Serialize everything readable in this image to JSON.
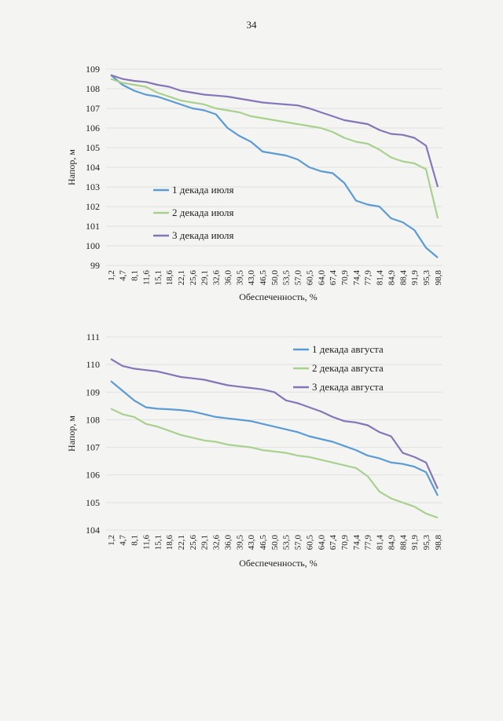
{
  "page_number": "34",
  "colors": {
    "blue": "#5b9bd5",
    "green": "#a9d18e",
    "purple": "#8676b8",
    "grid": "#e1e1e1"
  },
  "x_tick_labels": [
    "1,2",
    "4,7",
    "8,1",
    "11,6",
    "15,1",
    "18,6",
    "22,1",
    "25,6",
    "29,1",
    "32,6",
    "36,0",
    "39,5",
    "43,0",
    "46,5",
    "50,0",
    "53,5",
    "57,0",
    "60,5",
    "64,0",
    "67,4",
    "70,9",
    "74,4",
    "77,9",
    "81,4",
    "84,9",
    "88,4",
    "91,9",
    "95,3",
    "98,8"
  ],
  "chart_data": [
    {
      "type": "line",
      "title": "",
      "xlabel": "Обеспеченность, %",
      "ylabel": "Напор, м",
      "ylim": [
        99,
        109
      ],
      "yticks": [
        "99",
        "100",
        "101",
        "102",
        "103",
        "104",
        "105",
        "106",
        "107",
        "108",
        "109"
      ],
      "legend_position": "left-center",
      "x": [
        1.2,
        4.7,
        8.1,
        11.6,
        15.1,
        18.6,
        22.1,
        25.6,
        29.1,
        32.6,
        36.0,
        39.5,
        43.0,
        46.5,
        50.0,
        53.5,
        57.0,
        60.5,
        64.0,
        67.4,
        70.9,
        74.4,
        77.9,
        81.4,
        84.9,
        88.4,
        91.9,
        95.3,
        98.8
      ],
      "series": [
        {
          "name": "1 декада июля",
          "color": "#5b9bd5",
          "values": [
            108.7,
            108.2,
            107.9,
            107.7,
            107.6,
            107.4,
            107.2,
            107.0,
            106.9,
            106.7,
            106.0,
            105.6,
            105.3,
            104.8,
            104.7,
            104.6,
            104.4,
            104.0,
            103.8,
            103.7,
            103.2,
            102.3,
            102.1,
            102.0,
            101.4,
            101.2,
            100.8,
            99.9,
            99.4
          ]
        },
        {
          "name": "2 декада июля",
          "color": "#a9d18e",
          "values": [
            108.5,
            108.3,
            108.2,
            108.1,
            107.8,
            107.6,
            107.4,
            107.3,
            107.2,
            107.0,
            106.9,
            106.8,
            106.6,
            106.5,
            106.4,
            106.3,
            106.2,
            106.1,
            106.0,
            105.8,
            105.5,
            105.3,
            105.2,
            104.9,
            104.5,
            104.3,
            104.2,
            103.9,
            101.4
          ]
        },
        {
          "name": "3 декада июля",
          "color": "#8676b8",
          "values": [
            108.7,
            108.5,
            108.4,
            108.35,
            108.2,
            108.1,
            107.9,
            107.8,
            107.7,
            107.65,
            107.6,
            107.5,
            107.4,
            107.3,
            107.25,
            107.2,
            107.15,
            107.0,
            106.8,
            106.6,
            106.4,
            106.3,
            106.2,
            105.9,
            105.7,
            105.65,
            105.5,
            105.1,
            103.0
          ]
        }
      ]
    },
    {
      "type": "line",
      "title": "",
      "xlabel": "Обеспеченность, %",
      "ylabel": "Напор, м",
      "ylim": [
        104,
        111
      ],
      "yticks": [
        "104",
        "105",
        "106",
        "107",
        "108",
        "109",
        "110",
        "111"
      ],
      "legend_position": "top-right",
      "x": [
        1.2,
        4.7,
        8.1,
        11.6,
        15.1,
        18.6,
        22.1,
        25.6,
        29.1,
        32.6,
        36.0,
        39.5,
        43.0,
        46.5,
        50.0,
        53.5,
        57.0,
        60.5,
        64.0,
        67.4,
        70.9,
        74.4,
        77.9,
        81.4,
        84.9,
        88.4,
        91.9,
        95.3,
        98.8
      ],
      "series": [
        {
          "name": "1 декада августа",
          "color": "#5b9bd5",
          "values": [
            109.4,
            109.05,
            108.7,
            108.45,
            108.4,
            108.38,
            108.35,
            108.3,
            108.2,
            108.1,
            108.05,
            108.0,
            107.95,
            107.85,
            107.75,
            107.65,
            107.55,
            107.4,
            107.3,
            107.2,
            107.05,
            106.9,
            106.7,
            106.6,
            106.45,
            106.4,
            106.3,
            106.1,
            105.25
          ]
        },
        {
          "name": "2 декада августа",
          "color": "#a9d18e",
          "values": [
            108.4,
            108.2,
            108.1,
            107.85,
            107.75,
            107.6,
            107.45,
            107.35,
            107.25,
            107.2,
            107.1,
            107.05,
            107.0,
            106.9,
            106.85,
            106.8,
            106.7,
            106.65,
            106.55,
            106.45,
            106.35,
            106.25,
            105.95,
            105.4,
            105.15,
            105.0,
            104.85,
            104.6,
            104.45
          ]
        },
        {
          "name": "3 декада августа",
          "color": "#8676b8",
          "values": [
            110.2,
            109.95,
            109.85,
            109.8,
            109.75,
            109.65,
            109.55,
            109.5,
            109.45,
            109.35,
            109.25,
            109.2,
            109.15,
            109.1,
            109.0,
            108.7,
            108.6,
            108.45,
            108.3,
            108.1,
            107.95,
            107.9,
            107.8,
            107.55,
            107.4,
            106.8,
            106.65,
            106.45,
            105.5
          ]
        }
      ]
    }
  ]
}
